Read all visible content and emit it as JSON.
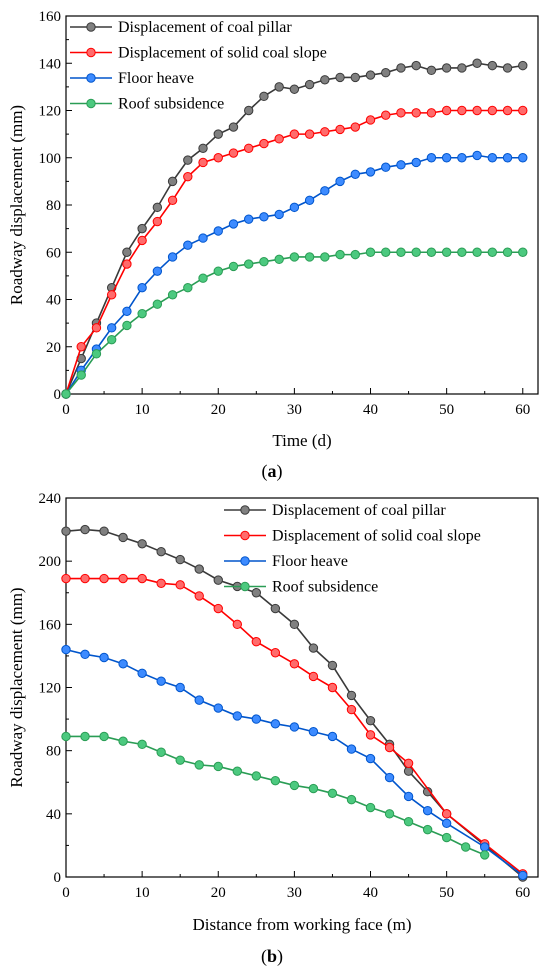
{
  "chart_data": [
    {
      "type": "line",
      "caption_letter": "a",
      "xlabel": "Time (d)",
      "ylabel": "Roadway displacement (mm)",
      "xlim": [
        0,
        62
      ],
      "ylim": [
        0,
        160
      ],
      "xticks": [
        0,
        10,
        20,
        30,
        40,
        50,
        60
      ],
      "yticks": [
        0,
        20,
        40,
        60,
        80,
        100,
        120,
        140,
        160
      ],
      "grid": false,
      "legend_position": "top-left",
      "series": [
        {
          "name": "Displacement of coal pillar",
          "color": "#3a3a3a",
          "marker_color": "#808080",
          "x": [
            0,
            2,
            4,
            6,
            8,
            10,
            12,
            14,
            16,
            18,
            20,
            22,
            24,
            26,
            28,
            30,
            32,
            34,
            36,
            38,
            40,
            42,
            44,
            46,
            48,
            50,
            52,
            54,
            56,
            58,
            60
          ],
          "y": [
            0,
            15,
            30,
            45,
            60,
            70,
            79,
            90,
            99,
            104,
            110,
            113,
            120,
            126,
            130,
            129,
            131,
            133,
            134,
            134,
            135,
            136,
            138,
            139,
            137,
            138,
            138,
            140,
            139,
            138,
            139
          ]
        },
        {
          "name": "Displacement of solid coal slope",
          "color": "#ff0000",
          "marker_color": "#ff6b6b",
          "x": [
            0,
            2,
            4,
            6,
            8,
            10,
            12,
            14,
            16,
            18,
            20,
            22,
            24,
            26,
            28,
            30,
            32,
            34,
            36,
            38,
            40,
            42,
            44,
            46,
            48,
            50,
            52,
            54,
            56,
            58,
            60
          ],
          "y": [
            0,
            20,
            28,
            42,
            55,
            65,
            73,
            82,
            92,
            98,
            100,
            102,
            104,
            106,
            108,
            110,
            110,
            111,
            112,
            113,
            116,
            118,
            119,
            119,
            119,
            120,
            120,
            120,
            120,
            120,
            120
          ]
        },
        {
          "name": "Floor heave",
          "color": "#0055cc",
          "marker_color": "#3d8bff",
          "x": [
            0,
            2,
            4,
            6,
            8,
            10,
            12,
            14,
            16,
            18,
            20,
            22,
            24,
            26,
            28,
            30,
            32,
            34,
            36,
            38,
            40,
            42,
            44,
            46,
            48,
            50,
            52,
            54,
            56,
            58,
            60
          ],
          "y": [
            0,
            10,
            19,
            28,
            35,
            45,
            52,
            58,
            63,
            66,
            69,
            72,
            74,
            75,
            76,
            79,
            82,
            86,
            90,
            93,
            94,
            96,
            97,
            98,
            100,
            100,
            100,
            101,
            100,
            100,
            100
          ]
        },
        {
          "name": "Roof subsidence",
          "color": "#2a9d55",
          "marker_color": "#4cc97f",
          "x": [
            0,
            2,
            4,
            6,
            8,
            10,
            12,
            14,
            16,
            18,
            20,
            22,
            24,
            26,
            28,
            30,
            32,
            34,
            36,
            38,
            40,
            42,
            44,
            46,
            48,
            50,
            52,
            54,
            56,
            58,
            60
          ],
          "y": [
            0,
            8,
            17,
            23,
            29,
            34,
            38,
            42,
            45,
            49,
            52,
            54,
            55,
            56,
            57,
            58,
            58,
            58,
            59,
            59,
            60,
            60,
            60,
            60,
            60,
            60,
            60,
            60,
            60,
            60,
            60
          ]
        }
      ]
    },
    {
      "type": "line",
      "caption_letter": "b",
      "xlabel": "Distance from working face (m)",
      "ylabel": "Roadway displacement (mm)",
      "xlim": [
        0,
        62
      ],
      "ylim": [
        0,
        240
      ],
      "xticks": [
        0,
        10,
        20,
        30,
        40,
        50,
        60
      ],
      "yticks": [
        0,
        40,
        80,
        120,
        160,
        200,
        240
      ],
      "grid": false,
      "legend_position": "top-right",
      "series": [
        {
          "name": "Displacement of coal pillar",
          "color": "#3a3a3a",
          "marker_color": "#808080",
          "x": [
            0,
            2.5,
            5,
            7.5,
            10,
            12.5,
            15,
            17.5,
            20,
            22.5,
            25,
            27.5,
            30,
            32.5,
            35,
            37.5,
            40,
            42.5,
            45,
            47.5,
            50,
            55,
            60
          ],
          "y": [
            219,
            220,
            219,
            215,
            211,
            206,
            201,
            195,
            188,
            184,
            180,
            170,
            160,
            145,
            134,
            115,
            99,
            84,
            67,
            54,
            40,
            20,
            0
          ]
        },
        {
          "name": "Displacement of solid coal slope",
          "color": "#ff0000",
          "marker_color": "#ff6b6b",
          "x": [
            0,
            2.5,
            5,
            7.5,
            10,
            12.5,
            15,
            17.5,
            20,
            22.5,
            25,
            27.5,
            30,
            32.5,
            35,
            37.5,
            40,
            42.5,
            45,
            50,
            55,
            60
          ],
          "y": [
            189,
            189,
            189,
            189,
            189,
            186,
            185,
            178,
            170,
            160,
            149,
            142,
            135,
            127,
            120,
            106,
            90,
            82,
            72,
            40,
            21,
            2
          ]
        },
        {
          "name": "Floor heave",
          "color": "#0055cc",
          "marker_color": "#3d8bff",
          "x": [
            0,
            2.5,
            5,
            7.5,
            10,
            12.5,
            15,
            17.5,
            20,
            22.5,
            25,
            27.5,
            30,
            32.5,
            35,
            37.5,
            40,
            42.5,
            45,
            47.5,
            50,
            55,
            60
          ],
          "y": [
            144,
            141,
            139,
            135,
            129,
            124,
            120,
            112,
            107,
            102,
            100,
            97,
            95,
            92,
            89,
            81,
            75,
            63,
            51,
            42,
            34,
            19,
            1
          ]
        },
        {
          "name": "Roof subsidence",
          "color": "#2a9d55",
          "marker_color": "#4cc97f",
          "x": [
            0,
            2.5,
            5,
            7.5,
            10,
            12.5,
            15,
            17.5,
            20,
            22.5,
            25,
            27.5,
            30,
            32.5,
            35,
            37.5,
            40,
            42.5,
            45,
            47.5,
            50,
            52.5,
            55
          ],
          "y": [
            89,
            89,
            89,
            86,
            84,
            79,
            74,
            71,
            70,
            67,
            64,
            61,
            58,
            56,
            53,
            49,
            44,
            40,
            35,
            30,
            25,
            19,
            14
          ]
        }
      ]
    }
  ]
}
